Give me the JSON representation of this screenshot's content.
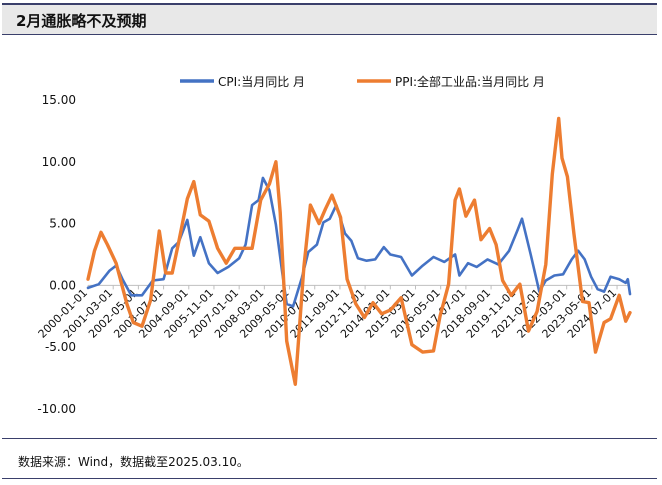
{
  "header": {
    "title": "2月通胀略不及预期"
  },
  "footer": {
    "source": "数据来源：Wind，数据截至2025.03.10。"
  },
  "colors": {
    "cpi": "#4472c4",
    "ppi": "#ed7d31",
    "frame": "#3a3f6b"
  },
  "chart_data": {
    "type": "line",
    "title": "",
    "xlabel": "",
    "ylabel": "",
    "ylim": [
      -10,
      15
    ],
    "yticks": [
      "15.00",
      "10.00",
      "5.00",
      "0.00",
      "-5.00",
      "-10.00"
    ],
    "ytick_values": [
      15,
      10,
      5,
      0,
      -5,
      -10
    ],
    "xtick_labels": [
      "2000-01-01",
      "2001-03-01",
      "2002-05-01",
      "2003-07-01",
      "2004-09-01",
      "2005-11-01",
      "2007-01-01",
      "2008-03-01",
      "2009-05-01",
      "2010-07-01",
      "2011-09-01",
      "2012-11-01",
      "2014-01-01",
      "2015-03-01",
      "2016-05-01",
      "2017-07-01",
      "2018-09-01",
      "2019-11-01",
      "2021-01-01",
      "2022-03-01",
      "2023-05-01",
      "2024-07-01"
    ],
    "xtick_years": [
      2000.0,
      2001.167,
      2002.333,
      2003.5,
      2004.667,
      2005.833,
      2007.0,
      2008.167,
      2009.333,
      2010.5,
      2011.667,
      2012.833,
      2014.0,
      2015.167,
      2016.333,
      2017.5,
      2018.667,
      2019.833,
      2021.0,
      2022.167,
      2023.333,
      2024.5
    ],
    "x_range": [
      2000.0,
      2025.1
    ],
    "legend_position": "top",
    "series": [
      {
        "name": "CPI:当月同比  月",
        "color": "#4472c4",
        "x": [
          2000.0,
          2000.5,
          2001.0,
          2001.3,
          2001.6,
          2002.0,
          2002.5,
          2003.0,
          2003.5,
          2003.9,
          2004.2,
          2004.6,
          2004.9,
          2005.2,
          2005.6,
          2006.0,
          2006.5,
          2007.0,
          2007.3,
          2007.6,
          2007.9,
          2008.1,
          2008.4,
          2008.7,
          2009.0,
          2009.2,
          2009.5,
          2009.9,
          2010.2,
          2010.6,
          2010.9,
          2011.2,
          2011.5,
          2011.9,
          2012.2,
          2012.5,
          2012.9,
          2013.3,
          2013.7,
          2014.0,
          2014.5,
          2015.0,
          2015.5,
          2016.0,
          2016.5,
          2017.0,
          2017.2,
          2017.6,
          2018.0,
          2018.5,
          2019.0,
          2019.5,
          2019.9,
          2020.1,
          2020.5,
          2020.9,
          2021.2,
          2021.6,
          2022.0,
          2022.4,
          2022.7,
          2023.0,
          2023.3,
          2023.6,
          2023.9,
          2024.2,
          2024.6,
          2024.9,
          2025.0,
          2025.1
        ],
        "y": [
          -0.2,
          0.1,
          1.2,
          1.6,
          0.5,
          -0.8,
          -0.8,
          0.4,
          0.5,
          3.0,
          3.5,
          5.3,
          2.4,
          3.9,
          1.8,
          1.0,
          1.5,
          2.2,
          3.3,
          6.5,
          6.9,
          8.7,
          7.7,
          4.9,
          1.0,
          -1.5,
          -1.7,
          0.6,
          2.7,
          3.3,
          5.1,
          5.4,
          6.5,
          4.2,
          3.6,
          2.2,
          2.0,
          2.1,
          3.1,
          2.5,
          2.3,
          0.8,
          1.6,
          2.3,
          1.9,
          2.5,
          0.8,
          1.8,
          1.5,
          2.1,
          1.7,
          2.8,
          4.5,
          5.4,
          2.5,
          -0.5,
          0.4,
          0.8,
          0.9,
          2.1,
          2.8,
          2.1,
          0.7,
          -0.3,
          -0.5,
          0.7,
          0.5,
          0.2,
          0.5,
          -0.7
        ]
      },
      {
        "name": "PPI:全部工业品:当月同比  月",
        "color": "#ed7d31",
        "x": [
          2000.0,
          2000.3,
          2000.6,
          2000.9,
          2001.3,
          2001.8,
          2002.1,
          2002.5,
          2002.9,
          2003.3,
          2003.6,
          2003.9,
          2004.2,
          2004.6,
          2004.9,
          2005.2,
          2005.6,
          2006.0,
          2006.4,
          2006.8,
          2007.2,
          2007.6,
          2008.0,
          2008.4,
          2008.7,
          2008.9,
          2009.2,
          2009.6,
          2010.0,
          2010.3,
          2010.7,
          2011.0,
          2011.3,
          2011.7,
          2012.0,
          2012.4,
          2012.8,
          2013.2,
          2013.6,
          2014.0,
          2014.5,
          2015.0,
          2015.5,
          2016.0,
          2016.3,
          2016.7,
          2017.0,
          2017.2,
          2017.5,
          2017.9,
          2018.2,
          2018.6,
          2018.9,
          2019.2,
          2019.6,
          2020.0,
          2020.4,
          2020.8,
          2021.2,
          2021.5,
          2021.8,
          2021.95,
          2022.2,
          2022.5,
          2022.9,
          2023.2,
          2023.5,
          2023.9,
          2024.2,
          2024.6,
          2024.9,
          2025.1
        ],
        "y": [
          0.5,
          2.8,
          4.3,
          3.3,
          1.8,
          -1.5,
          -3.0,
          -3.3,
          -1.2,
          4.4,
          1.0,
          1.0,
          3.5,
          7.0,
          8.4,
          5.7,
          5.2,
          3.0,
          1.8,
          3.0,
          3.0,
          3.0,
          6.9,
          8.2,
          10.0,
          5.9,
          -4.5,
          -8.0,
          1.5,
          6.5,
          5.0,
          6.2,
          7.3,
          5.5,
          0.5,
          -1.5,
          -2.6,
          -1.4,
          -2.3,
          -2.0,
          -1.0,
          -4.8,
          -5.4,
          -5.3,
          -2.5,
          0.1,
          6.9,
          7.8,
          5.6,
          6.9,
          3.7,
          4.6,
          3.3,
          0.4,
          -0.8,
          0.1,
          -3.7,
          -2.1,
          1.7,
          9.0,
          13.5,
          10.3,
          8.8,
          4.2,
          -1.3,
          -1.4,
          -5.4,
          -3.0,
          -2.7,
          -0.8,
          -2.9,
          -2.2
        ]
      }
    ]
  }
}
